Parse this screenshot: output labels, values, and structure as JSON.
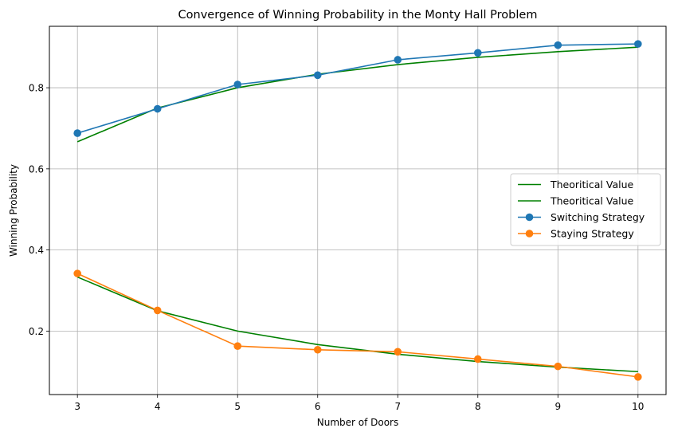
{
  "chart_data": {
    "type": "line",
    "title": "Convergence of Winning Probability in the Monty Hall Problem",
    "xlabel": "Number of Doors",
    "ylabel": "Winning Probability",
    "x": [
      3,
      4,
      5,
      6,
      7,
      8,
      9,
      10
    ],
    "xlim": [
      2.65,
      10.35
    ],
    "ylim": [
      0.0435,
      0.9515
    ],
    "xticks": [
      3,
      4,
      5,
      6,
      7,
      8,
      9,
      10
    ],
    "yticks": [
      0.2,
      0.4,
      0.6,
      0.8
    ],
    "ytick_labels": [
      "0.2",
      "0.4",
      "0.6",
      "0.8"
    ],
    "grid": true,
    "legend_position": "center-right",
    "series": [
      {
        "name": "Theoritical Value",
        "color": "#008000",
        "marker": "none",
        "values": [
          0.6667,
          0.75,
          0.8,
          0.8333,
          0.8571,
          0.875,
          0.8889,
          0.9
        ]
      },
      {
        "name": "Theoritical Value",
        "color": "#008000",
        "marker": "none",
        "values": [
          0.3333,
          0.25,
          0.2,
          0.1667,
          0.1429,
          0.125,
          0.1111,
          0.1
        ]
      },
      {
        "name": "Switching Strategy",
        "color": "#1f77b4",
        "marker": "circle",
        "values": [
          0.688,
          0.748,
          0.808,
          0.831,
          0.869,
          0.886,
          0.905,
          0.908
        ]
      },
      {
        "name": "Staying Strategy",
        "color": "#ff7f0e",
        "marker": "circle",
        "values": [
          0.342,
          0.251,
          0.163,
          0.154,
          0.149,
          0.131,
          0.113,
          0.087
        ]
      }
    ]
  }
}
